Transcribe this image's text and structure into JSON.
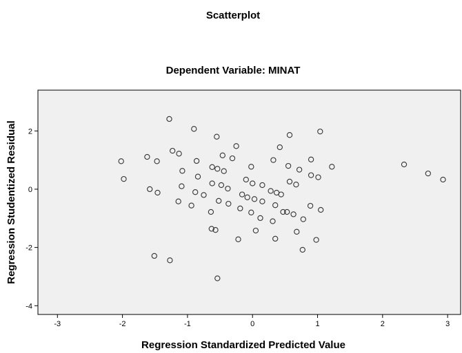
{
  "chart_data": {
    "type": "scatter",
    "title": "Scatterplot",
    "subtitle": "Dependent Variable: MINAT",
    "xlabel": "Regression Standardized Predicted Value",
    "ylabel": "Regression Studentized Residual",
    "xlim": [
      -3.3,
      3.2
    ],
    "ylim": [
      -4.3,
      3.4
    ],
    "xticks": [
      -3,
      -2,
      -1,
      0,
      1,
      2,
      3
    ],
    "xtick_labels": [
      "-3",
      "-2",
      "-1",
      "0",
      "1",
      "2",
      "3"
    ],
    "yticks": [
      -4,
      -2,
      0,
      2
    ],
    "ytick_labels": [
      "-4",
      "-2",
      "0",
      "2"
    ],
    "grid": false,
    "colors": {
      "plot_background": "#f0f0f0",
      "marker_stroke": "#333333",
      "frame": "#000000"
    },
    "marker": "open-circle",
    "series": [
      {
        "points": [
          [
            -1.28,
            2.41
          ],
          [
            -0.9,
            2.07
          ],
          [
            -0.55,
            1.8
          ],
          [
            0.57,
            1.86
          ],
          [
            1.04,
            1.98
          ],
          [
            -0.25,
            1.48
          ],
          [
            0.42,
            1.44
          ],
          [
            -1.23,
            1.32
          ],
          [
            -1.13,
            1.22
          ],
          [
            -1.62,
            1.11
          ],
          [
            -2.02,
            0.96
          ],
          [
            -1.47,
            0.96
          ],
          [
            -0.46,
            1.16
          ],
          [
            -0.31,
            1.06
          ],
          [
            0.32,
            1.0
          ],
          [
            0.9,
            1.02
          ],
          [
            -0.86,
            0.97
          ],
          [
            -0.62,
            0.76
          ],
          [
            -0.54,
            0.7
          ],
          [
            -0.44,
            0.62
          ],
          [
            -1.08,
            0.63
          ],
          [
            -0.02,
            0.77
          ],
          [
            0.55,
            0.8
          ],
          [
            0.72,
            0.67
          ],
          [
            1.22,
            0.77
          ],
          [
            2.33,
            0.85
          ],
          [
            2.7,
            0.54
          ],
          [
            2.93,
            0.33
          ],
          [
            -1.98,
            0.35
          ],
          [
            -0.84,
            0.43
          ],
          [
            0.9,
            0.48
          ],
          [
            1.01,
            0.41
          ],
          [
            0.15,
            0.14
          ],
          [
            0.67,
            0.16
          ],
          [
            -0.62,
            0.2
          ],
          [
            -0.48,
            0.14
          ],
          [
            -1.09,
            0.1
          ],
          [
            -0.1,
            0.33
          ],
          [
            0.0,
            0.2
          ],
          [
            0.57,
            0.26
          ],
          [
            -1.58,
            0.0
          ],
          [
            -1.46,
            -0.12
          ],
          [
            -0.38,
            0.02
          ],
          [
            -0.88,
            -0.1
          ],
          [
            -0.16,
            -0.18
          ],
          [
            0.03,
            -0.34
          ],
          [
            0.28,
            -0.06
          ],
          [
            0.37,
            -0.12
          ],
          [
            0.44,
            -0.18
          ],
          [
            -0.75,
            -0.2
          ],
          [
            -0.52,
            -0.4
          ],
          [
            -0.08,
            -0.28
          ],
          [
            0.15,
            -0.42
          ],
          [
            -1.14,
            -0.42
          ],
          [
            -0.94,
            -0.56
          ],
          [
            -0.37,
            -0.5
          ],
          [
            0.35,
            -0.55
          ],
          [
            0.47,
            -0.78
          ],
          [
            0.53,
            -0.78
          ],
          [
            0.63,
            -0.86
          ],
          [
            0.89,
            -0.57
          ],
          [
            1.05,
            -0.71
          ],
          [
            -0.64,
            -0.78
          ],
          [
            -0.19,
            -0.66
          ],
          [
            -0.02,
            -0.8
          ],
          [
            0.12,
            -0.99
          ],
          [
            0.31,
            -1.1
          ],
          [
            0.78,
            -1.03
          ],
          [
            -0.63,
            -1.36
          ],
          [
            -0.57,
            -1.4
          ],
          [
            0.05,
            -1.42
          ],
          [
            -0.22,
            -1.72
          ],
          [
            0.35,
            -1.7
          ],
          [
            0.68,
            -1.46
          ],
          [
            0.98,
            -1.74
          ],
          [
            0.77,
            -2.08
          ],
          [
            -1.51,
            -2.29
          ],
          [
            -1.27,
            -2.44
          ],
          [
            -0.54,
            -3.06
          ]
        ]
      }
    ]
  }
}
